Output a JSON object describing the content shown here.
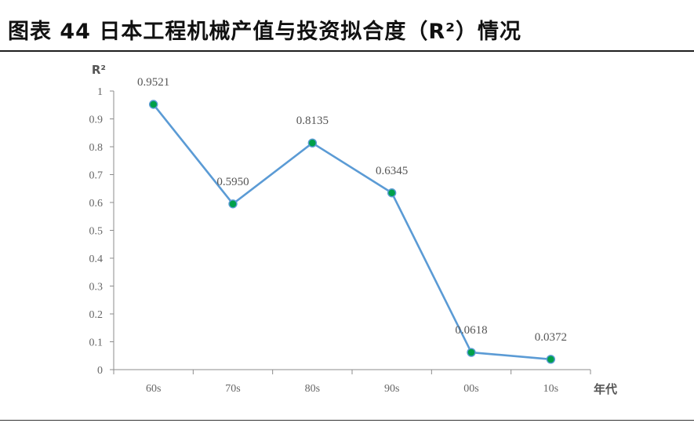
{
  "figure": {
    "title": "图表 44    日本工程机械产值与投资拟合度（R²）情况"
  },
  "colors": {
    "line": "#5b9bd5",
    "marker_fill": "#00a04a",
    "axis": "#555555"
  },
  "chart_data": {
    "type": "line",
    "title": "",
    "xlabel": "年代",
    "ylabel": "R²",
    "categories": [
      "60s",
      "70s",
      "80s",
      "90s",
      "00s",
      "10s"
    ],
    "series": [
      {
        "values": [
          0.9521,
          0.595,
          0.8135,
          0.6345,
          0.0618,
          0.0372
        ],
        "labels": [
          "0.9521",
          "0.5950",
          "0.8135",
          "0.6345",
          "0.0618",
          "0.0372"
        ]
      }
    ],
    "ylim": [
      0,
      1
    ],
    "yticks": [
      0,
      0.1,
      0.2,
      0.3,
      0.4,
      0.5,
      0.6,
      0.7,
      0.8,
      0.9,
      1
    ],
    "ytick_labels": [
      "0",
      "0.1",
      "0.2",
      "0.3",
      "0.4",
      "0.5",
      "0.6",
      "0.7",
      "0.8",
      "0.9",
      "1"
    ],
    "grid": false,
    "legend": "none"
  }
}
